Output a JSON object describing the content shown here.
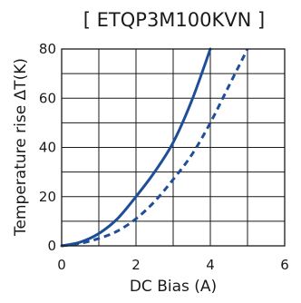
{
  "chart_data": {
    "type": "line",
    "title": "[ ETQP3M100KVN ]",
    "xlabel": "DC Bias (A)",
    "ylabel": "Temperature rise ΔT(K)",
    "xlim": [
      0,
      6
    ],
    "ylim": [
      0,
      80
    ],
    "x_ticks": [
      0,
      2,
      4,
      6
    ],
    "y_ticks": [
      0,
      20,
      40,
      60,
      80
    ],
    "grid": true,
    "colors": {
      "series": "#1f4e99",
      "grid": "#1a1a1a",
      "text": "#1a1a1a"
    },
    "series": [
      {
        "style": "solid",
        "x": [
          0,
          0.5,
          1.0,
          1.5,
          2.0,
          2.5,
          3.0,
          3.5,
          4.0
        ],
        "y": [
          0,
          1.5,
          5,
          11,
          20,
          30,
          42,
          59,
          80
        ]
      },
      {
        "style": "dashed",
        "x": [
          0,
          0.5,
          1.0,
          1.5,
          2.0,
          2.5,
          3.0,
          3.5,
          4.0,
          4.5,
          5.0
        ],
        "y": [
          0,
          1,
          3,
          6,
          11,
          18,
          27,
          37,
          50,
          65,
          80
        ]
      }
    ]
  }
}
